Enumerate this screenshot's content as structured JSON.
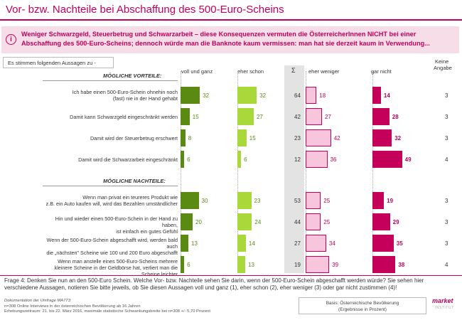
{
  "title": "Vor- bzw. Nachteile bei Abschaffung des 500-Euro-Scheins",
  "info_text": "Weniger Schwarzgeld, Steuerbetrug und Schwarzarbeit – diese Konsequenzen vermuten die ÖsterreicherInnen NICHT bei einer Abschaffung des 500-Euro-Scheins; dennoch würde man die Banknote kaum vermissen: man hat sie derzeit kaum in Verwendung...",
  "statement_label": "Es stimmen folgenden Aussagen zu -",
  "columns": {
    "voll_und_ganz": "voll und ganz",
    "eher_schon": "eher schon",
    "sigma": "Σ",
    "eher_weniger": "eher weniger",
    "gar_nicht": "gar nicht",
    "keine_angabe_1": "Keine",
    "keine_angabe_2": "Angabe"
  },
  "colors": {
    "voll": "#5b8a12",
    "eher_schon": "#a8d83a",
    "eher_weniger": "#f8c6dc",
    "gar_nicht": "#c4005a",
    "accent": "#c4005a"
  },
  "chart_data": {
    "type": "bar",
    "orientation": "horizontal",
    "sections": [
      {
        "label": "MÖGLICHE VORTEILE:",
        "rows": [
          {
            "label": [
              "Ich habe einen 500-Euro-Schein ohnehin noch",
              "(fast) nie in der Hand gehabt"
            ],
            "voll": 32,
            "eher_schon": 32,
            "sigma": 64,
            "eher_weniger": 18,
            "gar_nicht": 14,
            "keine_angabe": 3
          },
          {
            "label": [
              "Damit kann Schwarzgeld eingeschränkt werden"
            ],
            "voll": 15,
            "eher_schon": 27,
            "sigma": 42,
            "eher_weniger": 27,
            "gar_nicht": 28,
            "keine_angabe": 3
          },
          {
            "label": [
              "Damit wird der Steuerbetrug  erschwert"
            ],
            "voll": 8,
            "eher_schon": 15,
            "sigma": 23,
            "eher_weniger": 42,
            "gar_nicht": 32,
            "keine_angabe": 3
          },
          {
            "label": [
              "Damit wird die Schwarzarbeit eingeschränkt"
            ],
            "voll": 6,
            "eher_schon": 6,
            "sigma": 12,
            "eher_weniger": 36,
            "gar_nicht": 49,
            "keine_angabe": 4
          }
        ]
      },
      {
        "label": "MÖGLICHE NACHTEILE:",
        "rows": [
          {
            "label": [
              "Wenn man privat ein teureres Produkt wie",
              "z.B. ein Auto kaufen will, wird das Bezahlen umständlicher"
            ],
            "voll": 30,
            "eher_schon": 23,
            "sigma": 53,
            "eher_weniger": 25,
            "gar_nicht": 19,
            "keine_angabe": 3
          },
          {
            "label": [
              "Hin und wieder einen 500-Euro-Schein in der Hand zu haben,",
              "ist einfach ein gutes Gefühl"
            ],
            "voll": 20,
            "eher_schon": 24,
            "sigma": 44,
            "eher_weniger": 25,
            "gar_nicht": 29,
            "keine_angabe": 3
          },
          {
            "label": [
              "Wenn der 500-Euro-Schein abgeschafft wird, werden  bald auch",
              "die „nächsten\" Scheine wie 100 und 200 Euro abgeschafft"
            ],
            "voll": 13,
            "eher_schon": 14,
            "sigma": 27,
            "eher_weniger": 34,
            "gar_nicht": 35,
            "keine_angabe": 3
          },
          {
            "label": [
              "Wenn man anstelle eines 500-Euro-Scheins mehrere",
              "kleinere Scheine in der Geldbörse hat, verliert man die Scheine leichter"
            ],
            "voll": 6,
            "eher_schon": 13,
            "sigma": 19,
            "eher_weniger": 39,
            "gar_nicht": 38,
            "keine_angabe": 4
          }
        ]
      }
    ]
  },
  "question": "Frage 4:   Denken Sie nun an den 500-Euro Schein. Welche Vor- bzw. Nachteile sehen Sie darin, wenn der 500-Euro-Schein abgeschafft werden würde? Sie sehen hier verschiedene Aussagen, notieren Sie bitte jeweils, ob Sie diesen Aussagen voll und ganz (1), eher schon (2), eher weniger (3) oder gar nicht zustimmen (4)!",
  "meta": {
    "line1": "Dokumentation der Umfrage MA773:",
    "line2": "n=308 Online Interviews in der österreichischen Bevölkerung ab 16 Jahren",
    "line3": "Erhebungszeitraum: 21. bis 22. März 2016, maximale statistische Schwankungsbreite bei n=308 +/- 5,70 Prozent"
  },
  "basis": {
    "line1": "Basis: Österreichische Bevölkerung",
    "line2": "(Ergebnisse in Prozent)"
  },
  "logo": {
    "text": "market",
    "sub": "INSTITUT"
  }
}
